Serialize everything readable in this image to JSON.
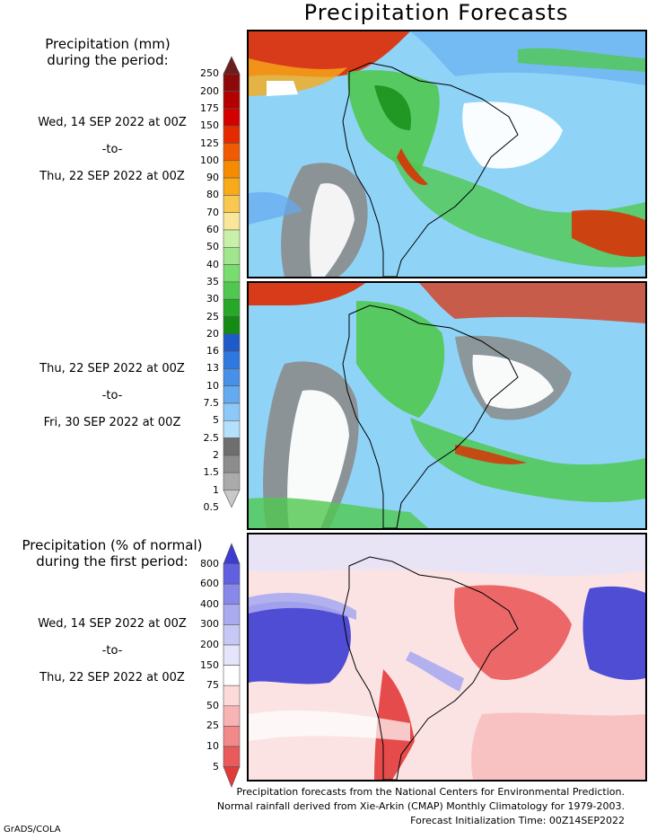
{
  "title": "Precipitation Forecasts",
  "section1": {
    "heading_line1": "Precipitation (mm)",
    "heading_line2": "during the period:"
  },
  "period1": {
    "start": "Wed, 14 SEP 2022 at 00Z",
    "sep": "-to-",
    "end": "Thu, 22 SEP 2022 at 00Z"
  },
  "period2": {
    "start": "Thu, 22 SEP 2022 at 00Z",
    "sep": "-to-",
    "end": "Fri, 30 SEP 2022 at 00Z"
  },
  "section2": {
    "heading_line1": "Precipitation (% of normal)",
    "heading_line2": "during the first period:"
  },
  "period3": {
    "start": "Wed, 14 SEP 2022 at 00Z",
    "sep": "-to-",
    "end": "Thu, 22 SEP 2022 at 00Z"
  },
  "precip_colorbar": {
    "labels": [
      "250",
      "200",
      "175",
      "150",
      "125",
      "100",
      "90",
      "80",
      "70",
      "60",
      "50",
      "40",
      "35",
      "30",
      "25",
      "20",
      "16",
      "13",
      "10",
      "7.5",
      "5",
      "2.5",
      "2",
      "1.5",
      "1",
      "0.5"
    ],
    "colors": [
      "#6b1e1e",
      "#8c0a0a",
      "#b40000",
      "#d40000",
      "#e62a00",
      "#f05a00",
      "#f58c00",
      "#f8aa18",
      "#f9c850",
      "#f9e69a",
      "#c8f0a8",
      "#a0e68c",
      "#78dc6e",
      "#50c850",
      "#28a828",
      "#148c14",
      "#1e5ac8",
      "#2f78e0",
      "#4690e8",
      "#64aaf0",
      "#8cc8f8",
      "#b4e0fc",
      "#6e6e6e",
      "#8c8c8c",
      "#aaaaaa",
      "#c8c8c8"
    ]
  },
  "pct_colorbar": {
    "labels": [
      "800",
      "600",
      "400",
      "300",
      "200",
      "150",
      "75",
      "50",
      "25",
      "10",
      "5"
    ],
    "colors": [
      "#3c3cd2",
      "#6060e0",
      "#8888ea",
      "#aaaaf0",
      "#c8c8f6",
      "#e4e4fa",
      "#ffffff",
      "#fcdada",
      "#f8b4b4",
      "#f28888",
      "#ea5a5a",
      "#e23a3a"
    ]
  },
  "footer": {
    "line1": "Precipitation forecasts from the National Centers for Environmental Prediction.",
    "line2": "Normal rainfall derived from Xie-Arkin (CMAP) Monthly Climatology for 1979-2003.",
    "line3": "Forecast Initialization Time: 00Z14SEP2022"
  },
  "credit": "GrADS/COLA"
}
